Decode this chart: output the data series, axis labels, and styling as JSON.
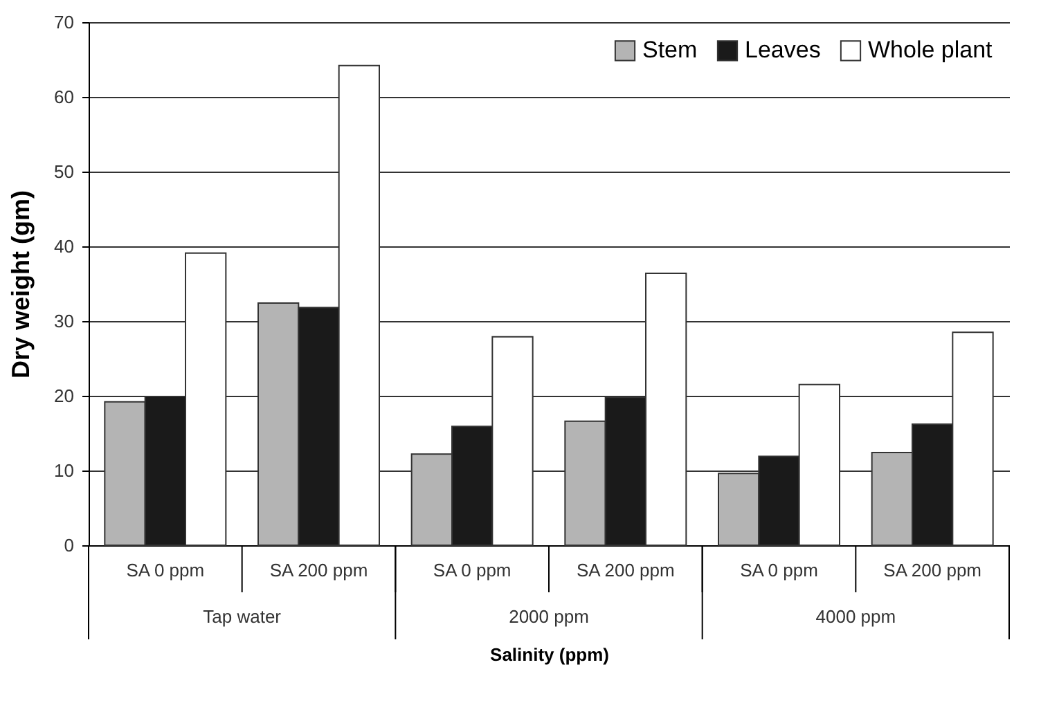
{
  "chart_data": {
    "type": "bar",
    "xlabel": "Salinity (ppm)",
    "ylabel": "Dry weight (gm)",
    "categories": [
      "SA 0 ppm",
      "SA 200 ppm",
      "SA 0 ppm",
      "SA 200 ppm",
      "SA 0 ppm",
      "SA 200 ppm"
    ],
    "annotations": [
      "Tap water",
      "2000 ppm",
      "4000 ppm"
    ],
    "series": [
      {
        "name": "Stem",
        "color": "#b4b4b4",
        "values": [
          19.2,
          32.4,
          12.2,
          16.6,
          9.6,
          12.4
        ]
      },
      {
        "name": "Leaves",
        "color": "#1a1a1a",
        "values": [
          19.9,
          31.8,
          15.9,
          19.8,
          11.9,
          16.2
        ]
      },
      {
        "name": "Whole plant",
        "color": "#ffffff",
        "values": [
          39.1,
          64.2,
          27.9,
          36.4,
          21.5,
          28.5
        ]
      }
    ],
    "ylim": [
      0,
      70
    ],
    "yticks": [
      0,
      10,
      20,
      30,
      40,
      50,
      60,
      70
    ],
    "grid": "y",
    "legend": "top right"
  }
}
